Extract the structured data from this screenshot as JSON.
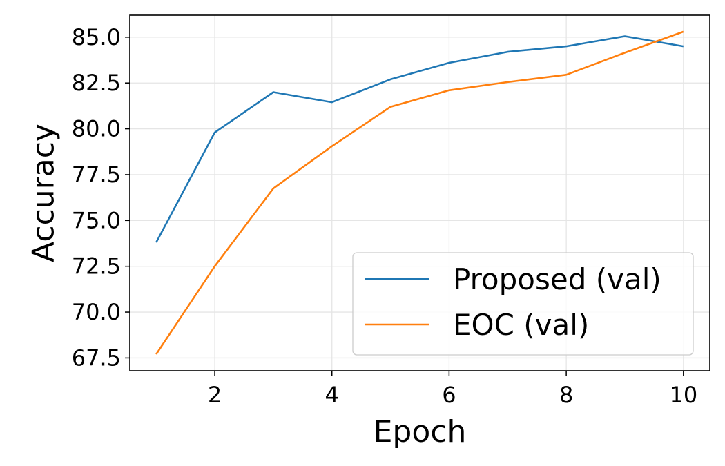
{
  "chart_data": {
    "type": "line",
    "title": "",
    "xlabel": "Epoch",
    "ylabel": "Accuracy",
    "xlim": [
      0.55,
      10.45
    ],
    "ylim": [
      66.8,
      86.2
    ],
    "x_ticks": [
      2,
      4,
      6,
      8,
      10
    ],
    "x_tick_labels": [
      "2",
      "4",
      "6",
      "8",
      "10"
    ],
    "y_ticks": [
      67.5,
      70.0,
      72.5,
      75.0,
      77.5,
      80.0,
      82.5,
      85.0
    ],
    "y_tick_labels": [
      "67.5",
      "70.0",
      "72.5",
      "75.0",
      "77.5",
      "80.0",
      "82.5",
      "85.0"
    ],
    "grid": true,
    "legend_position": "lower-right",
    "x": [
      1,
      2,
      3,
      4,
      5,
      6,
      7,
      8,
      9,
      10
    ],
    "series": [
      {
        "name": "Proposed (val)",
        "color": "#1f77b4",
        "values": [
          73.8,
          79.8,
          82.0,
          81.45,
          82.7,
          83.6,
          84.2,
          84.5,
          85.05,
          84.5
        ]
      },
      {
        "name": "EOC (val)",
        "color": "#ff7f0e",
        "values": [
          67.7,
          72.5,
          76.75,
          79.05,
          81.2,
          82.1,
          82.55,
          82.95,
          84.15,
          85.3
        ]
      }
    ]
  }
}
